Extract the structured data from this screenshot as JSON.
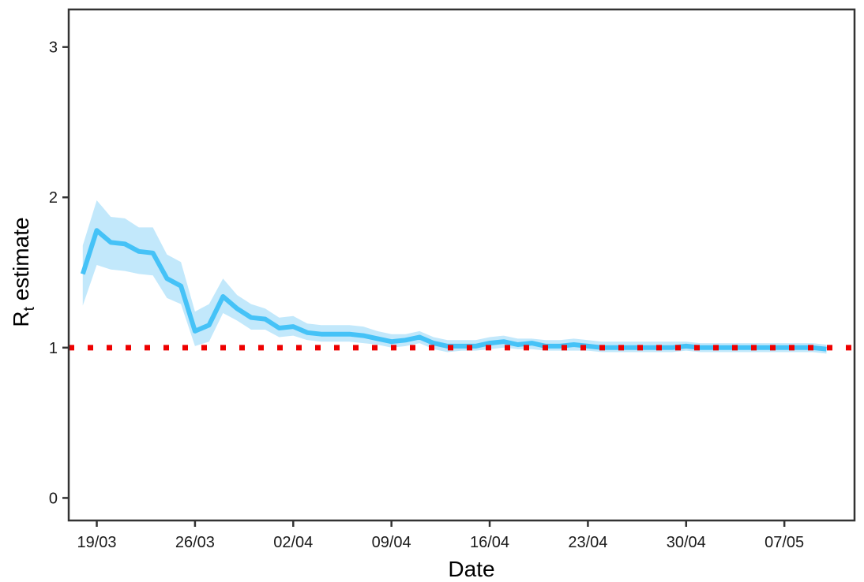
{
  "chart_data": {
    "type": "line",
    "xlabel": "Date",
    "ylabel": "R",
    "ylabel_subscript": "t",
    "ylabel_suffix": " estimate",
    "x_start_date": "2020-03-18",
    "xlim": [
      "2020-03-17",
      "2020-05-12"
    ],
    "ylim": [
      -0.15,
      3.25
    ],
    "xticks": [
      {
        "date": "2020-03-19",
        "label": "19/03"
      },
      {
        "date": "2020-03-26",
        "label": "26/03"
      },
      {
        "date": "2020-04-02",
        "label": "02/04"
      },
      {
        "date": "2020-04-09",
        "label": "09/04"
      },
      {
        "date": "2020-04-16",
        "label": "16/04"
      },
      {
        "date": "2020-04-23",
        "label": "23/04"
      },
      {
        "date": "2020-04-30",
        "label": "30/04"
      },
      {
        "date": "2020-05-07",
        "label": "07/05"
      }
    ],
    "yticks": [
      0,
      1,
      2,
      3
    ],
    "ytick_labels": [
      "0",
      "1",
      "2",
      "3"
    ],
    "reference_line": {
      "y": 1,
      "style": "dotted",
      "color": "#ee0000"
    },
    "series": [
      {
        "color": "#45c2f7",
        "band_color": "#c2e8fb",
        "values": [
          1.49,
          1.78,
          1.7,
          1.69,
          1.64,
          1.63,
          1.46,
          1.41,
          1.11,
          1.15,
          1.34,
          1.26,
          1.2,
          1.19,
          1.13,
          1.14,
          1.1,
          1.09,
          1.09,
          1.09,
          1.08,
          1.06,
          1.04,
          1.05,
          1.07,
          1.03,
          1.01,
          1.01,
          1.01,
          1.03,
          1.04,
          1.02,
          1.03,
          1.01,
          1.01,
          1.02,
          1.01,
          1.0,
          1.0,
          1.0,
          1.0,
          1.0,
          1.0,
          1.01,
          1.0,
          1.0,
          1.0,
          1.0,
          1.0,
          1.0,
          1.0,
          1.0,
          1.0,
          0.99
        ],
        "lower": [
          1.28,
          1.55,
          1.52,
          1.51,
          1.49,
          1.48,
          1.33,
          1.29,
          1.01,
          1.04,
          1.23,
          1.18,
          1.12,
          1.12,
          1.07,
          1.08,
          1.05,
          1.04,
          1.04,
          1.04,
          1.03,
          1.02,
          1.0,
          1.01,
          1.03,
          0.99,
          0.97,
          0.98,
          0.98,
          0.99,
          1.0,
          0.99,
          0.99,
          0.98,
          0.98,
          0.98,
          0.98,
          0.97,
          0.97,
          0.97,
          0.97,
          0.97,
          0.97,
          0.98,
          0.97,
          0.97,
          0.97,
          0.97,
          0.97,
          0.97,
          0.97,
          0.97,
          0.97,
          0.96
        ],
        "upper": [
          1.68,
          1.98,
          1.87,
          1.86,
          1.8,
          1.8,
          1.62,
          1.57,
          1.24,
          1.29,
          1.46,
          1.35,
          1.29,
          1.26,
          1.2,
          1.21,
          1.16,
          1.15,
          1.15,
          1.15,
          1.14,
          1.11,
          1.09,
          1.09,
          1.11,
          1.07,
          1.05,
          1.05,
          1.05,
          1.07,
          1.08,
          1.06,
          1.06,
          1.05,
          1.05,
          1.06,
          1.05,
          1.04,
          1.04,
          1.04,
          1.04,
          1.04,
          1.04,
          1.04,
          1.03,
          1.03,
          1.03,
          1.03,
          1.03,
          1.03,
          1.03,
          1.03,
          1.03,
          1.02
        ]
      }
    ],
    "grid": false,
    "legend": "none"
  }
}
